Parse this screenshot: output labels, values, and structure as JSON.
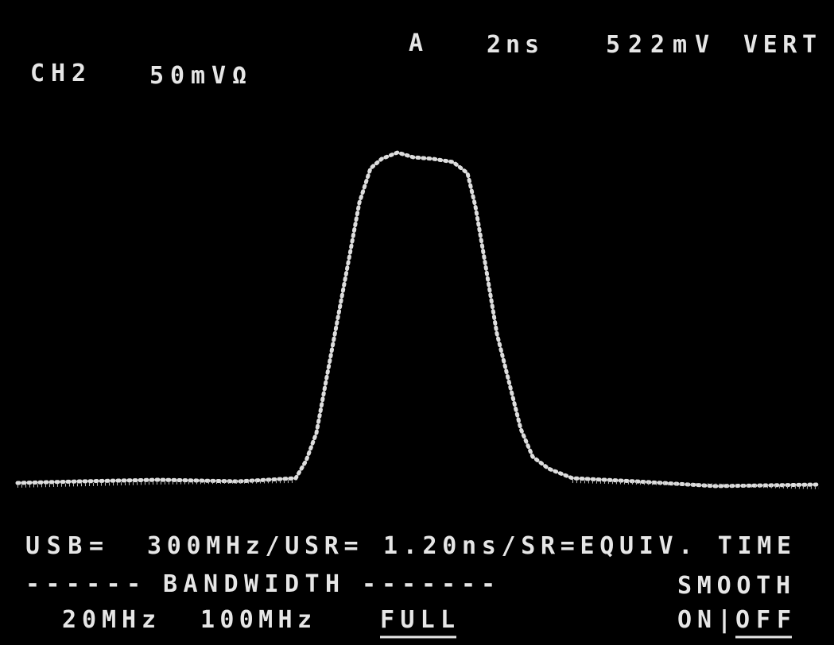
{
  "header": {
    "channel": "CH2",
    "scale": "50mVΩ",
    "trigger": "A",
    "timebase": "2ns",
    "level": "522mV",
    "mode": "VERT"
  },
  "status": {
    "usb": "USB=",
    "settings": "300MHz/USR= 1.20ns/SR=EQUIV. TIME"
  },
  "bandwidth": {
    "left_rule": "------",
    "title": "BANDWIDTH",
    "right_rule": "-------",
    "options": [
      "20MHz",
      "100MHz",
      "FULL"
    ]
  },
  "smooth": {
    "title": "SMOOTH",
    "on": "ON|",
    "off": "OFF"
  }
}
